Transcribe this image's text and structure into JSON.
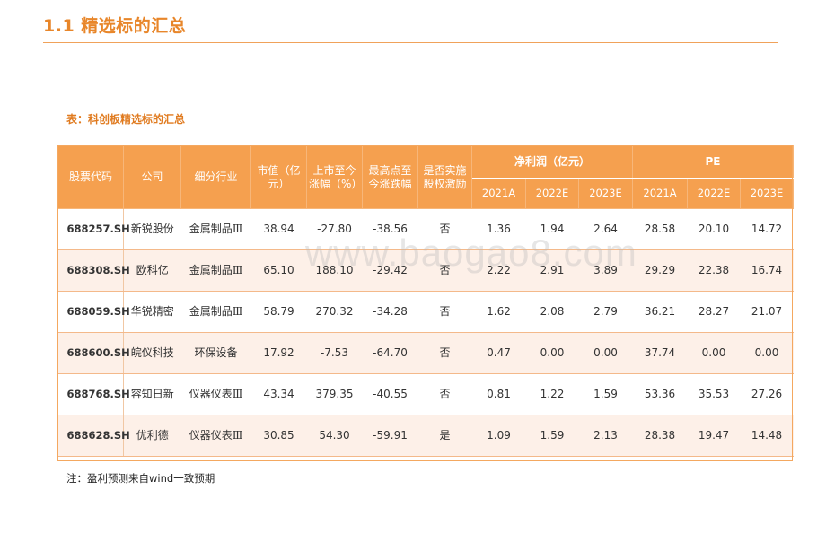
{
  "header": {
    "title": "1.1 精选标的汇总",
    "accent_color": "#e8862a"
  },
  "table_caption": "表：科创板精选标的汇总",
  "table": {
    "header_color": "#f5a04f",
    "columns": {
      "code": "股票代码",
      "company": "公司",
      "industry": "细分行业",
      "market_cap": "市值（亿元）",
      "since_ipo": "上市至今涨幅（%）",
      "from_high": "最高点至今涨跌幅",
      "incentive": "是否实施股权激励",
      "net_profit": "净利润（亿元）",
      "pe": "PE"
    },
    "years": [
      "2021A",
      "2022E",
      "2023E"
    ],
    "rows": [
      {
        "code": "688257.SH",
        "company": "新锐股份",
        "industry": "金属制品Ⅲ",
        "market_cap": "38.94",
        "since_ipo": "-27.80",
        "from_high": "-38.56",
        "incentive": "否",
        "np": [
          "1.36",
          "1.94",
          "2.64"
        ],
        "pe": [
          "28.58",
          "20.10",
          "14.72"
        ]
      },
      {
        "code": "688308.SH",
        "company": "欧科亿",
        "industry": "金属制品Ⅲ",
        "market_cap": "65.10",
        "since_ipo": "188.10",
        "from_high": "-29.42",
        "incentive": "否",
        "np": [
          "2.22",
          "2.91",
          "3.89"
        ],
        "pe": [
          "29.29",
          "22.38",
          "16.74"
        ]
      },
      {
        "code": "688059.SH",
        "company": "华锐精密",
        "industry": "金属制品Ⅲ",
        "market_cap": "58.79",
        "since_ipo": "270.32",
        "from_high": "-34.28",
        "incentive": "否",
        "np": [
          "1.62",
          "2.08",
          "2.79"
        ],
        "pe": [
          "36.21",
          "28.27",
          "21.07"
        ]
      },
      {
        "code": "688600.SH",
        "company": "皖仪科技",
        "industry": "环保设备",
        "market_cap": "17.92",
        "since_ipo": "-7.53",
        "from_high": "-64.70",
        "incentive": "否",
        "np": [
          "0.47",
          "0.00",
          "0.00"
        ],
        "pe": [
          "37.74",
          "0.00",
          "0.00"
        ]
      },
      {
        "code": "688768.SH",
        "company": "容知日新",
        "industry": "仪器仪表Ⅲ",
        "market_cap": "43.34",
        "since_ipo": "379.35",
        "from_high": "-40.55",
        "incentive": "否",
        "np": [
          "0.81",
          "1.22",
          "1.59"
        ],
        "pe": [
          "53.36",
          "35.53",
          "27.26"
        ]
      },
      {
        "code": "688628.SH",
        "company": "优利德",
        "industry": "仪器仪表Ⅲ",
        "market_cap": "30.85",
        "since_ipo": "54.30",
        "from_high": "-59.91",
        "incentive": "是",
        "np": [
          "1.09",
          "1.59",
          "2.13"
        ],
        "pe": [
          "28.38",
          "19.47",
          "14.48"
        ]
      }
    ]
  },
  "footnote": "注：盈利预测来自wind一致预期",
  "watermark": "www.baogao8.com"
}
